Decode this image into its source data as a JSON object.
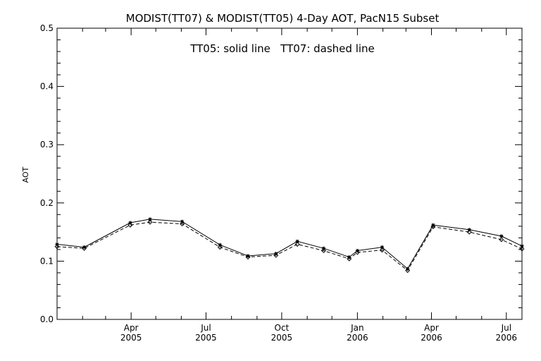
{
  "chart_data": {
    "type": "line",
    "title": "MODIST(TT07) & MODIST(TT05) 4-Day AOT, PacN15 Subset",
    "annotation": "TT05: solid line   TT07: dashed line",
    "xlabel": "",
    "ylabel": "AOT",
    "ylim": [
      0.0,
      0.5
    ],
    "yticks": [
      "0.0",
      "0.1",
      "0.2",
      "0.3",
      "0.4",
      "0.5"
    ],
    "xlim": [
      "2005-01-01",
      "2006-07-20"
    ],
    "xticks": [
      {
        "date": "2005-04-01",
        "month": "Apr",
        "year": "2005"
      },
      {
        "date": "2005-07-01",
        "month": "Jul",
        "year": "2005"
      },
      {
        "date": "2005-10-01",
        "month": "Oct",
        "year": "2005"
      },
      {
        "date": "2006-01-01",
        "month": "Jan",
        "year": "2006"
      },
      {
        "date": "2006-04-01",
        "month": "Apr",
        "year": "2006"
      },
      {
        "date": "2006-07-01",
        "month": "Jul",
        "year": "2006"
      }
    ],
    "grid": false,
    "x": [
      "2005-01-01",
      "2005-02-03",
      "2005-03-31",
      "2005-04-24",
      "2005-06-02",
      "2005-07-18",
      "2005-08-21",
      "2005-09-24",
      "2005-10-20",
      "2005-11-21",
      "2005-12-22",
      "2006-01-01",
      "2006-01-31",
      "2006-03-03",
      "2006-04-03",
      "2006-05-17",
      "2006-06-25",
      "2006-07-20"
    ],
    "series": [
      {
        "name": "TT05",
        "line_style": "solid",
        "marker": "asterisk",
        "values": [
          0.129,
          0.124,
          0.166,
          0.172,
          0.168,
          0.128,
          0.109,
          0.113,
          0.134,
          0.122,
          0.107,
          0.118,
          0.124,
          0.087,
          0.162,
          0.154,
          0.143,
          0.126
        ]
      },
      {
        "name": "TT07",
        "line_style": "dashed",
        "marker": "diamond",
        "values": [
          0.125,
          0.122,
          0.162,
          0.167,
          0.164,
          0.124,
          0.107,
          0.11,
          0.129,
          0.118,
          0.104,
          0.115,
          0.119,
          0.084,
          0.159,
          0.15,
          0.137,
          0.121
        ]
      }
    ],
    "colors": {
      "axis": "#000000",
      "line": "#000000",
      "background": "#ffffff"
    }
  }
}
